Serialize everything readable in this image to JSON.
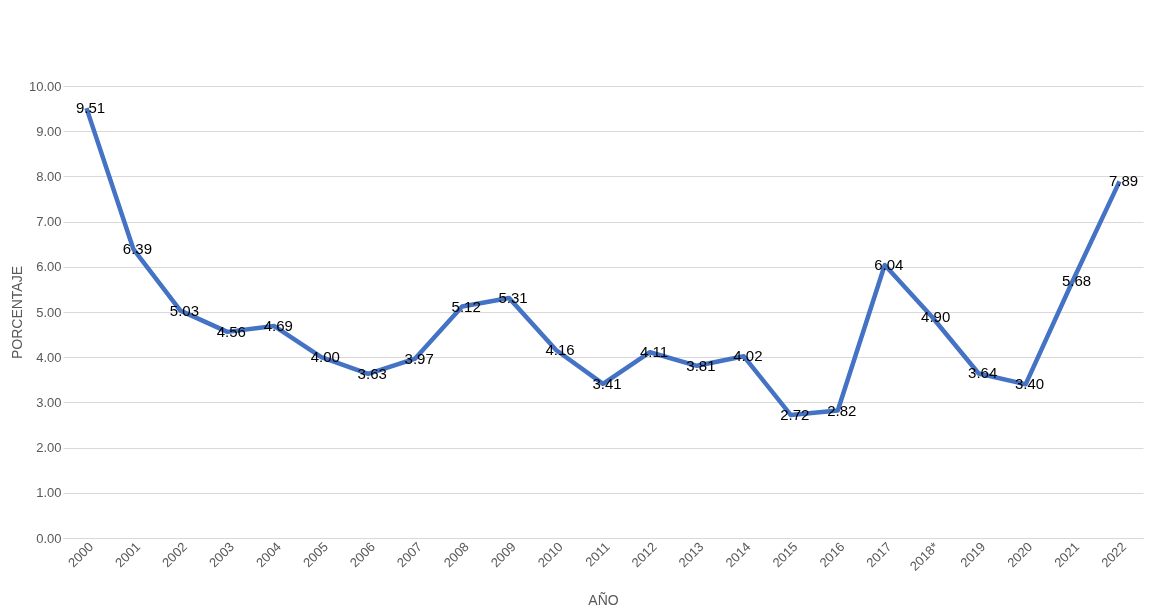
{
  "chart_data": {
    "type": "line",
    "xlabel": "AÑO",
    "ylabel": "PORCENTAJE",
    "categories": [
      "2000",
      "2001",
      "2002",
      "2003",
      "2004",
      "2005",
      "2006",
      "2007",
      "2008",
      "2009",
      "2010",
      "2011",
      "2012",
      "2013",
      "2014",
      "2015",
      "2016",
      "2017",
      "2018*",
      "2019",
      "2020",
      "2021",
      "2022"
    ],
    "series": [
      {
        "color": "#4472c4",
        "values": [
          9.51,
          6.39,
          5.03,
          4.56,
          4.69,
          4.0,
          3.63,
          3.97,
          5.12,
          5.31,
          4.16,
          3.41,
          4.11,
          3.81,
          4.02,
          2.72,
          2.82,
          6.04,
          4.9,
          3.64,
          3.4,
          5.68,
          7.89
        ],
        "value_labels": [
          "9.51",
          "6.39",
          "5.03",
          "4.56",
          "4.69",
          "4.00",
          "3.63",
          "3.97",
          "5.12",
          "5.31",
          "4.16",
          "3.41",
          "4.11",
          "3.81",
          "4.02",
          "2.72",
          "2.82",
          "6.04",
          "4.90",
          "3.64",
          "3.40",
          "5.68",
          "7.89"
        ]
      }
    ],
    "ylim": [
      0,
      10
    ],
    "yticks": [
      {
        "value": 0,
        "label": "0.00"
      },
      {
        "value": 1,
        "label": "1.00"
      },
      {
        "value": 2,
        "label": "2.00"
      },
      {
        "value": 3,
        "label": "3.00"
      },
      {
        "value": 4,
        "label": "4.00"
      },
      {
        "value": 5,
        "label": "5.00"
      },
      {
        "value": 6,
        "label": "6.00"
      },
      {
        "value": 7,
        "label": "7.00"
      },
      {
        "value": 8,
        "label": "8.00"
      },
      {
        "value": 9,
        "label": "9.00"
      },
      {
        "value": 10,
        "label": "10.00"
      }
    ],
    "grid": "y",
    "legend": false,
    "marker": "none",
    "line_style": "solid"
  }
}
